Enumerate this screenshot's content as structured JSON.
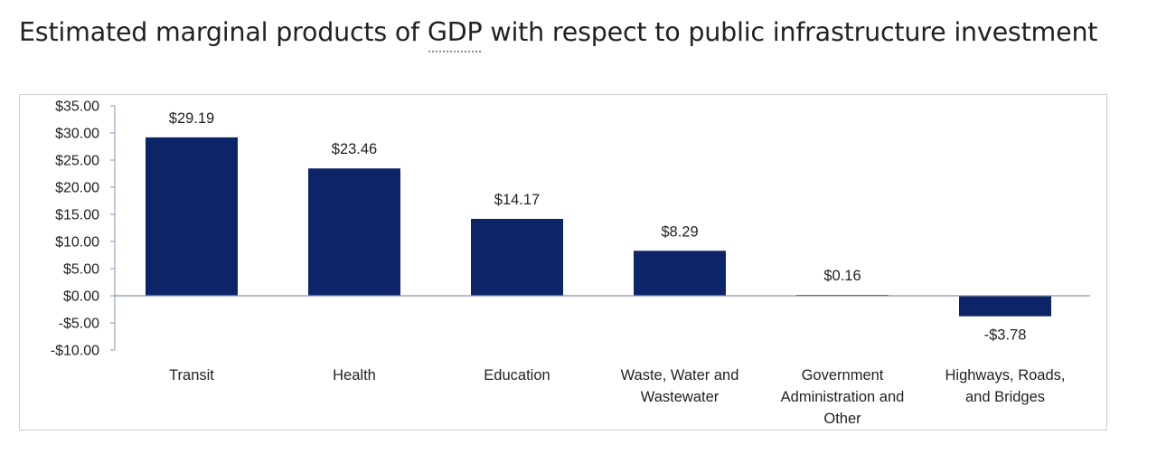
{
  "page": {
    "title_before": "Estimated marginal products of ",
    "title_abbr": "GDP",
    "title_after": " with respect to public infrastructure investment"
  },
  "colors": {
    "bar": "#0d2469",
    "axis": "#8a93ad",
    "text": "#222222"
  },
  "chart_data": {
    "type": "bar",
    "title": "Estimated marginal products of GDP with respect to public infrastructure investment",
    "xlabel": "",
    "ylabel": "",
    "grid": false,
    "legend": "none",
    "ylim": [
      -10,
      35
    ],
    "yticks": [
      35,
      30,
      25,
      20,
      15,
      10,
      5,
      0,
      -5,
      -10
    ],
    "ytick_labels": [
      "$35.00",
      "$30.00",
      "$25.00",
      "$20.00",
      "$15.00",
      "$10.00",
      "$5.00",
      "$0.00",
      "-$5.00",
      "-$10.00"
    ],
    "categories": [
      [
        "Transit"
      ],
      [
        "Health"
      ],
      [
        "Education"
      ],
      [
        "Waste, Water and",
        "Wastewater"
      ],
      [
        "Government",
        "Administration and",
        "Other"
      ],
      [
        "Highways, Roads,",
        "and Bridges"
      ]
    ],
    "values": [
      29.19,
      23.46,
      14.17,
      8.29,
      0.16,
      -3.78
    ],
    "data_labels": [
      "$29.19",
      "$23.46",
      "$14.17",
      "$8.29",
      "$0.16",
      "-$3.78"
    ]
  }
}
